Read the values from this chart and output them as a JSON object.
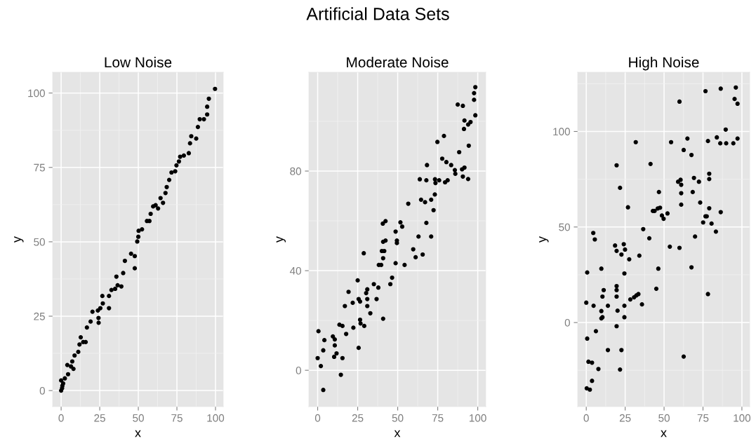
{
  "chart_data": [
    {
      "type": "scatter",
      "title": "Low Noise",
      "xlabel": "x",
      "ylabel": "y",
      "annotations": [
        "Artificial Data Sets"
      ],
      "xlim": [
        -5.5,
        105
      ],
      "ylim": [
        -5.4,
        107
      ],
      "xticks": [
        0,
        25,
        50,
        75,
        100
      ],
      "yticks": [
        0,
        25,
        50,
        75,
        100
      ],
      "grid": true,
      "marker": "circle",
      "series": [
        {
          "color": "#000000",
          "x": [
            0,
            0.6,
            0.8,
            1.3,
            0,
            2.4,
            4.5,
            4,
            6.4,
            8,
            7.2,
            8.7,
            11.1,
            11.9,
            12.7,
            14.3,
            15.9,
            16.7,
            19.1,
            20.3,
            23.8,
            24.2,
            24.3,
            25.4,
            27,
            26.7,
            31,
            31,
            32.6,
            35,
            35.8,
            36.6,
            39,
            40.2,
            41.3,
            45.3,
            47.7,
            47.7,
            49.3,
            50,
            50.2,
            52.4,
            55.6,
            57.2,
            58,
            59.6,
            61.2,
            62.8,
            64.4,
            66,
            67.6,
            68.4,
            70,
            71.5,
            73.9,
            74.7,
            76.3,
            77.1,
            79.5,
            82.7,
            83.5,
            84.3,
            87.5,
            88.6,
            89.8,
            92.5,
            94.6,
            94.6,
            95.7,
            99.7
          ],
          "values": [
            0,
            0.8,
            1.6,
            2.4,
            3.4,
            4.1,
            5.5,
            8.6,
            8.1,
            7.3,
            9.8,
            11.8,
            13,
            15.5,
            17.9,
            16.3,
            16.3,
            21.2,
            23.2,
            26.5,
            26.9,
            24.4,
            22.8,
            27.7,
            29.3,
            31.8,
            27.7,
            31.8,
            33.8,
            34.2,
            38.3,
            35.4,
            35,
            39.5,
            43.6,
            46,
            45.2,
            41.1,
            50.1,
            51.7,
            53.7,
            54.2,
            57,
            57,
            59.4,
            61.9,
            62.3,
            61.2,
            64.7,
            63.1,
            66.4,
            68.4,
            70.8,
            73.3,
            73.7,
            75.7,
            77,
            78.6,
            79,
            79.8,
            83.1,
            85.5,
            84.7,
            88.6,
            91.2,
            91.2,
            92.8,
            95.4,
            98.1,
            101.4
          ]
        }
      ]
    },
    {
      "type": "scatter",
      "title": "Moderate Noise",
      "xlabel": "x",
      "ylabel": "y",
      "xlim": [
        -5.5,
        105
      ],
      "ylim": [
        -14.6,
        119.7
      ],
      "xticks": [
        0,
        25,
        50,
        75,
        100
      ],
      "yticks": [
        0,
        40,
        80
      ],
      "grid": true,
      "marker": "circle",
      "series": [
        {
          "color": "#000000",
          "x": [
            0,
            0.5,
            2,
            3.5,
            3.5,
            4.2,
            9.5,
            10.7,
            10.7,
            11.8,
            10.3,
            13.6,
            15.5,
            15.5,
            14.5,
            17,
            17.8,
            19.3,
            21.9,
            22.3,
            25,
            25.6,
            26.5,
            25.6,
            26.5,
            26.8,
            29.1,
            28.8,
            30.3,
            31,
            31,
            31,
            32.9,
            35.1,
            36.8,
            37.9,
            38.2,
            39.7,
            40.9,
            40.9,
            40.1,
            41.6,
            40.9,
            42.4,
            40.7,
            42.4,
            45.4,
            46.5,
            48.7,
            48.7,
            49.5,
            49.5,
            51.7,
            52.8,
            54.3,
            56.6,
            59.7,
            61.2,
            63,
            63.8,
            64.6,
            65.6,
            67.1,
            67.9,
            67.9,
            68.3,
            70.9,
            70.9,
            72.4,
            73.2,
            73.3,
            73.6,
            74.8,
            75.9,
            77.8,
            78.9,
            79.6,
            80.4,
            81.2,
            83.4,
            85.7,
            86,
            87.5,
            88.4,
            90.7,
            90.2,
            90.7,
            91.4,
            91.7,
            91.7,
            94,
            94.4,
            94,
            95.5,
            98.5,
            97.7,
            97.7,
            98.5
          ],
          "values": [
            4.9,
            15.7,
            1.7,
            -7.9,
            8,
            12.1,
            13.6,
            12.4,
            10,
            6.8,
            5.4,
            18.3,
            17.8,
            4.9,
            -1.8,
            25.8,
            14.6,
            31.5,
            27.1,
            17.1,
            36.1,
            28.6,
            27.6,
            9,
            20.3,
            18.8,
            17.8,
            47,
            31,
            32.5,
            28.6,
            25.8,
            22.9,
            34.6,
            28.6,
            33.2,
            42.3,
            42.3,
            20.7,
            45,
            47.9,
            47.9,
            51.6,
            52.1,
            58.9,
            59.9,
            34.6,
            37.2,
            43,
            55.7,
            52.1,
            51.1,
            59.4,
            57.7,
            42.3,
            66.9,
            48.6,
            45.4,
            53.7,
            76.7,
            68.5,
            46.5,
            67.5,
            76.3,
            59.2,
            82.4,
            68.5,
            53.7,
            64.3,
            70.6,
            76.7,
            75.2,
            91.7,
            76.3,
            85,
            94.1,
            75.5,
            83.6,
            76.3,
            82.4,
            80.4,
            78.9,
            106.7,
            87.6,
            106.2,
            80.7,
            77.8,
            96.9,
            81.4,
            100.3,
            76.8,
            90.2,
            98.7,
            99.7,
            102.4,
            108.6,
            111.3,
            113.7
          ]
        }
      ]
    },
    {
      "type": "scatter",
      "title": "High Noise",
      "xlabel": "x",
      "ylabel": "y",
      "xlim": [
        -5.5,
        105
      ],
      "ylim": [
        -44,
        131
      ],
      "xticks": [
        0,
        25,
        50,
        75,
        100
      ],
      "yticks": [
        0,
        50,
        100
      ],
      "grid": true,
      "marker": "circle",
      "series": [
        {
          "color": "#000000",
          "x": [
            0,
            0.6,
            0.6,
            0.3,
            2.3,
            1.4,
            3.7,
            3.7,
            4.7,
            4.5,
            5.5,
            6.2,
            7.8,
            9.7,
            9.7,
            9.7,
            10.4,
            10.4,
            11.2,
            13.9,
            13.9,
            18.5,
            19.5,
            19.5,
            19.5,
            19.5,
            19.5,
            19.5,
            20.1,
            21.7,
            21.7,
            22.6,
            22.6,
            24.1,
            24.9,
            24.5,
            24.5,
            24.5,
            26.8,
            27.6,
            28.3,
            30.7,
            32.2,
            33.5,
            31.8,
            34.1,
            35.8,
            36.6,
            40.5,
            41.3,
            42.8,
            43.9,
            45,
            45.9,
            46.7,
            46.3,
            47.4,
            48.6,
            49.7,
            52.2,
            53.7,
            54.5,
            59,
            59.9,
            59.9,
            60.6,
            61,
            61,
            61,
            62.6,
            62.6,
            65,
            67.6,
            67.6,
            68.4,
            69.2,
            69.9,
            72.4,
            73.2,
            75.1,
            76.6,
            76.6,
            77.4,
            78.2,
            78.2,
            79,
            79,
            79,
            80.5,
            83.3,
            83.9,
            86.1,
            86.4,
            86.4,
            89.6,
            89.9,
            94.5,
            95.3,
            96.1,
            97.2,
            97.2
          ],
          "values": [
            10.4,
            -8.4,
            26.2,
            -34.4,
            -35.1,
            -20.5,
            -21,
            -30.5,
            8.8,
            46.9,
            43.5,
            -4.5,
            -24.3,
            28.2,
            6,
            2.2,
            2.8,
            13.6,
            17,
            8.8,
            -14.4,
            40.3,
            37.5,
            82.3,
            19.1,
            17,
            13.6,
            -1.9,
            6.2,
            70.5,
            -24.6,
            -14.4,
            35.6,
            41,
            38.2,
            25.7,
            8.8,
            2.8,
            60.3,
            33.1,
            12.1,
            13.2,
            14.2,
            14.9,
            94.4,
            35,
            9.5,
            48.9,
            44.1,
            83,
            58.4,
            58.4,
            17.7,
            59.7,
            68.3,
            28.2,
            60.1,
            56,
            54.3,
            57.1,
            39.7,
            94.4,
            73.7,
            115.6,
            39.1,
            74.7,
            72.1,
            67.7,
            61.7,
            90.3,
            -17.8,
            96.3,
            87.7,
            28.9,
            68.3,
            75.7,
            45,
            73.7,
            62.8,
            52.4,
            55.6,
            121.1,
            55.6,
            95,
            14.9,
            77.9,
            75.1,
            59.8,
            51.8,
            47.6,
            96.9,
            93.8,
            122.4,
            57.8,
            101,
            93.8,
            93.8,
            117,
            123,
            96.3,
            114.5
          ]
        }
      ]
    }
  ]
}
